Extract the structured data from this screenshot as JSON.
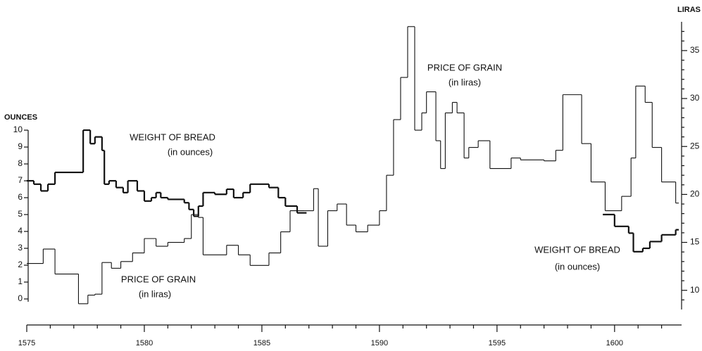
{
  "chart_data": {
    "type": "step",
    "ylabel": "OUNCES",
    "y2label": "LIRAS",
    "annotations": [
      "WEIGHT OF BREAD",
      "(in ounces)",
      "PRICE OF GRAIN",
      "(in liras)",
      "PRICE OF GRAIN",
      "(in liras)",
      "WEIGHT OF BREAD",
      "(in ounces)"
    ],
    "xlim": [
      1575,
      1602.85
    ],
    "xticks": [
      1575,
      1580,
      1585,
      1590,
      1595,
      1600
    ],
    "xminorticks": [
      1576,
      1577,
      1578,
      1579,
      1581,
      1582,
      1583,
      1584,
      1586,
      1587,
      1588,
      1589,
      1591,
      1592,
      1593,
      1594,
      1596,
      1597,
      1598,
      1599,
      1601,
      1602
    ],
    "ylim": [
      -0.625,
      16.42
    ],
    "yticks": [
      0,
      1,
      2,
      3,
      4,
      5,
      6,
      7,
      8,
      9,
      10
    ],
    "y2lim": [
      8,
      38
    ],
    "y2ticks": [
      10,
      15,
      20,
      25,
      30,
      35
    ],
    "y2minorticks": [
      9,
      11,
      12,
      13,
      14,
      16,
      17,
      18,
      19,
      21,
      22,
      23,
      24,
      26,
      27,
      28,
      29,
      31,
      32,
      33,
      34,
      36,
      37
    ],
    "series": [
      {
        "name": "WEIGHT OF BREAD",
        "color": "#111111",
        "axis": "y",
        "x": [
          1575.0,
          1575.3,
          1575.6,
          1575.9,
          1576.2,
          1577.4,
          1577.7,
          1577.9,
          1578.2,
          1578.3,
          1578.5,
          1578.8,
          1579.1,
          1579.3,
          1579.7,
          1580.0,
          1580.3,
          1580.5,
          1580.7,
          1581.0,
          1581.7,
          1581.9,
          1582.1,
          1582.3,
          1582.5,
          1583.0,
          1583.5,
          1583.8,
          1584.2,
          1584.5,
          1585.3,
          1585.7,
          1586.0,
          1586.5,
          1586.9,
          1599.5,
          1600.0,
          1600.6,
          1600.8,
          1601.2,
          1601.5,
          1602.0,
          1602.6
        ],
        "values": [
          7.0,
          6.8,
          6.4,
          6.8,
          7.5,
          10.0,
          9.2,
          9.6,
          8.8,
          6.8,
          7.0,
          6.6,
          6.3,
          7.0,
          6.4,
          5.8,
          6.0,
          6.3,
          6.0,
          5.9,
          5.7,
          5.3,
          4.9,
          5.5,
          6.3,
          6.2,
          6.5,
          6.0,
          6.3,
          6.8,
          6.6,
          6.0,
          5.5,
          5.1,
          null,
          5.0,
          4.3,
          3.9,
          2.8,
          3.0,
          3.4,
          3.8,
          4.1
        ]
      },
      {
        "name": "PRICE OF GRAIN",
        "color": "#111111",
        "axis": "y2",
        "x": [
          1575.0,
          1575.7,
          1576.2,
          1577.2,
          1577.6,
          1577.9,
          1578.2,
          1578.6,
          1579.0,
          1579.5,
          1580.0,
          1580.5,
          1581.0,
          1581.7,
          1582.0,
          1582.3,
          1582.5,
          1583.5,
          1584.0,
          1584.5,
          1585.3,
          1585.8,
          1586.2,
          1586.8,
          1587.2,
          1587.4,
          1587.8,
          1588.2,
          1588.6,
          1589.0,
          1589.5,
          1590.0,
          1590.3,
          1590.6,
          1590.9,
          1591.2,
          1591.5,
          1591.8,
          1592.0,
          1592.4,
          1592.6,
          1592.8,
          1593.1,
          1593.3,
          1593.6,
          1593.8,
          1594.2,
          1594.7,
          1595.6,
          1596.0,
          1597.0,
          1597.5,
          1597.8,
          1598.6,
          1599.0,
          1599.6,
          1600.3,
          1600.7,
          1600.9,
          1601.3,
          1601.6,
          1602.0,
          1602.6
        ],
        "values": [
          12.8,
          14.3,
          11.7,
          8.6,
          9.5,
          9.6,
          12.9,
          12.3,
          13.0,
          13.9,
          15.4,
          14.6,
          15.0,
          15.4,
          17.9,
          17.6,
          13.7,
          14.7,
          13.7,
          12.6,
          13.9,
          16.1,
          18.3,
          18.3,
          20.6,
          14.6,
          18.3,
          19.0,
          16.8,
          16.1,
          16.8,
          18.3,
          22.0,
          27.8,
          32.2,
          37.5,
          26.7,
          28.5,
          30.7,
          25.6,
          22.7,
          28.5,
          29.6,
          28.5,
          23.8,
          24.9,
          25.6,
          22.7,
          23.8,
          23.6,
          23.5,
          24.6,
          30.4,
          25.3,
          21.3,
          18.3,
          19.8,
          23.8,
          31.3,
          29.6,
          24.9,
          21.3,
          19.1
        ]
      }
    ]
  }
}
